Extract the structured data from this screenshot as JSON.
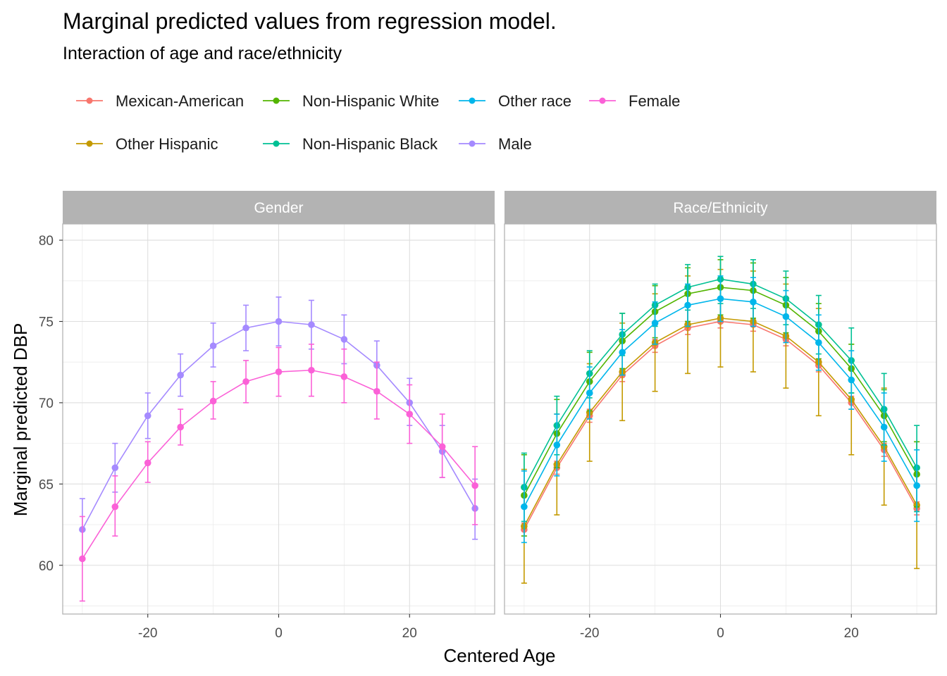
{
  "title": "Marginal predicted values from regression model.",
  "subtitle": "Interaction of age and race/ethnicity",
  "colors": {
    "Mexican-American": "#F8766D",
    "Other Hispanic": "#C49A00",
    "Non-Hispanic White": "#53B400",
    "Non-Hispanic Black": "#00C094",
    "Other race": "#00B6EB",
    "Male": "#A58AFF",
    "Female": "#FB61D7"
  },
  "legend": {
    "row1": [
      "Mexican-American",
      "Non-Hispanic White",
      "Other race",
      "Female"
    ],
    "row2": [
      "Other Hispanic",
      "Non-Hispanic Black",
      "Male"
    ]
  },
  "chart_data": {
    "type": "line",
    "xlabel": "Centered Age",
    "ylabel": "Marginal predicted DBP",
    "x": [
      -30,
      -25,
      -20,
      -15,
      -10,
      -5,
      0,
      5,
      10,
      15,
      20,
      25,
      30
    ],
    "xlim": [
      -33,
      33
    ],
    "ylim": [
      57,
      81
    ],
    "x_ticks": [
      -20,
      0,
      20
    ],
    "y_ticks": [
      60,
      65,
      70,
      75,
      80
    ],
    "grid": true,
    "legend_position": "top",
    "panels": [
      {
        "strip": "Gender",
        "series": [
          {
            "name": "Male",
            "values": [
              62.2,
              66.0,
              69.2,
              71.7,
              73.5,
              74.6,
              75.0,
              74.8,
              73.9,
              72.3,
              70.0,
              67.0,
              63.5
            ],
            "lower": [
              60.4,
              64.5,
              67.8,
              70.4,
              72.2,
              73.2,
              73.5,
              73.3,
              72.4,
              70.8,
              68.6,
              65.4,
              61.6
            ],
            "upper": [
              64.1,
              67.5,
              70.6,
              73.0,
              74.9,
              76.0,
              76.5,
              76.3,
              75.4,
              73.8,
              71.5,
              68.6,
              65.3
            ]
          },
          {
            "name": "Female",
            "values": [
              60.4,
              63.6,
              66.3,
              68.5,
              70.1,
              71.3,
              71.9,
              72.0,
              71.6,
              70.7,
              69.3,
              67.3,
              64.9
            ],
            "lower": [
              57.8,
              61.8,
              65.1,
              67.4,
              69.0,
              70.0,
              70.4,
              70.4,
              70.0,
              69.0,
              67.5,
              65.4,
              62.5
            ],
            "upper": [
              63.0,
              65.5,
              67.6,
              69.6,
              71.3,
              72.6,
              73.4,
              73.6,
              73.3,
              72.5,
              71.1,
              69.3,
              67.3
            ]
          }
        ]
      },
      {
        "strip": "Race/Ethnicity",
        "series": [
          {
            "name": "Mexican-American",
            "values": [
              62.2,
              66.0,
              69.2,
              71.7,
              73.5,
              74.6,
              75.0,
              74.8,
              73.9,
              72.3,
              70.0,
              67.1,
              63.5
            ],
            "lower": [
              61.8,
              65.6,
              68.8,
              71.3,
              73.1,
              74.2,
              74.6,
              74.4,
              73.5,
              71.9,
              69.6,
              66.7,
              63.1
            ],
            "upper": [
              62.6,
              66.4,
              69.6,
              72.1,
              73.9,
              75.0,
              75.4,
              75.2,
              74.3,
              72.7,
              70.4,
              67.5,
              63.9
            ]
          },
          {
            "name": "Other Hispanic",
            "values": [
              62.4,
              66.2,
              69.4,
              71.9,
              73.7,
              74.8,
              75.2,
              75.0,
              74.1,
              72.5,
              70.2,
              67.3,
              63.7
            ],
            "lower": [
              58.9,
              63.1,
              66.4,
              68.9,
              70.7,
              71.8,
              72.2,
              71.9,
              70.9,
              69.2,
              66.8,
              63.7,
              59.8
            ],
            "upper": [
              65.9,
              69.3,
              72.4,
              74.9,
              76.7,
              77.8,
              78.2,
              78.1,
              77.3,
              75.8,
              73.6,
              70.9,
              67.6
            ]
          },
          {
            "name": "Non-Hispanic White",
            "values": [
              64.3,
              68.1,
              71.3,
              73.8,
              75.6,
              76.7,
              77.1,
              76.9,
              76.0,
              74.4,
              72.1,
              69.2,
              65.6
            ],
            "lower": [
              61.8,
              66.0,
              69.5,
              72.1,
              74.0,
              75.0,
              75.4,
              75.2,
              74.3,
              72.7,
              70.6,
              67.6,
              63.6
            ],
            "upper": [
              66.8,
              70.2,
              73.1,
              75.5,
              77.2,
              78.3,
              78.8,
              78.6,
              77.7,
              76.1,
              73.6,
              70.8,
              67.6
            ]
          },
          {
            "name": "Non-Hispanic Black",
            "values": [
              64.8,
              68.6,
              71.8,
              74.2,
              76.0,
              77.1,
              77.6,
              77.3,
              76.4,
              74.8,
              72.6,
              69.6,
              66.0
            ],
            "lower": [
              62.7,
              66.8,
              70.3,
              72.9,
              74.7,
              75.7,
              76.1,
              75.8,
              74.8,
              73.0,
              70.6,
              67.4,
              63.3
            ],
            "upper": [
              66.9,
              70.4,
              73.2,
              75.5,
              77.3,
              78.5,
              79.0,
              78.8,
              78.1,
              76.6,
              74.6,
              71.8,
              68.6
            ]
          },
          {
            "name": "Other race",
            "values": [
              63.6,
              67.4,
              70.6,
              73.1,
              74.9,
              76.0,
              76.4,
              76.2,
              75.3,
              73.7,
              71.4,
              68.5,
              64.9
            ],
            "lower": [
              61.4,
              65.5,
              69.0,
              71.7,
              73.6,
              74.7,
              75.0,
              74.7,
              73.7,
              72.0,
              69.6,
              66.4,
              62.7
            ],
            "upper": [
              65.8,
              69.3,
              72.2,
              74.5,
              76.2,
              77.3,
              77.8,
              77.7,
              76.9,
              75.4,
              73.2,
              70.6,
              67.1
            ]
          }
        ]
      }
    ]
  }
}
